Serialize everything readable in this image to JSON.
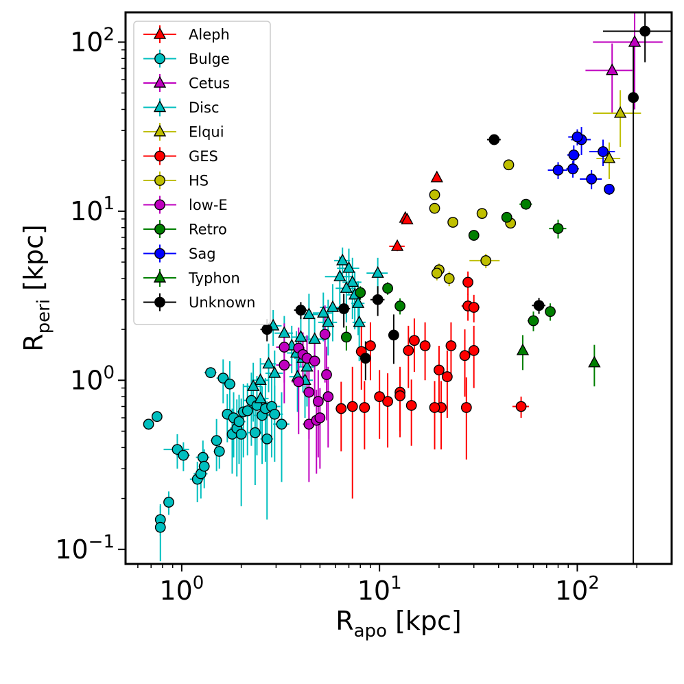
{
  "chart_data": {
    "type": "scatter",
    "title": "",
    "xlabel": "R_apo [kpc]",
    "xlabel_main": "R",
    "xlabel_sub": "apo",
    "xlabel_unit": " [kpc]",
    "ylabel": "R_peri [kpc]",
    "ylabel_main": "R",
    "ylabel_sub": "peri",
    "ylabel_unit": " [kpc]",
    "xscale": "log",
    "yscale": "log",
    "xlim": [
      0.52,
      300
    ],
    "ylim": [
      0.082,
      150
    ],
    "xticks": [
      {
        "value": 1,
        "base": "10",
        "exp": "0"
      },
      {
        "value": 10,
        "base": "10",
        "exp": "1"
      },
      {
        "value": 100,
        "base": "10",
        "exp": "2"
      }
    ],
    "yticks": [
      {
        "value": 0.1,
        "base": "10",
        "exp": "−1"
      },
      {
        "value": 1,
        "base": "10",
        "exp": "0"
      },
      {
        "value": 10,
        "base": "10",
        "exp": "1"
      },
      {
        "value": 100,
        "base": "10",
        "exp": "2"
      }
    ],
    "legend_position": "upper-left",
    "series": [
      {
        "name": "Aleph",
        "marker": "triangle",
        "color": "#ff0000",
        "points": [
          [
            19.5,
            15.8,
            0.6,
            0.8
          ],
          [
            13.5,
            9.1,
            0.5,
            0.5
          ],
          [
            13.8,
            8.9,
            0.6,
            0.5
          ],
          [
            12.3,
            6.2,
            1.1,
            0.4
          ]
        ]
      },
      {
        "name": "Bulge",
        "marker": "circle",
        "color": "#00bfbf",
        "points": [
          [
            0.68,
            0.55,
            0.04,
            0.04
          ],
          [
            0.75,
            0.61,
            0.04,
            0.04
          ],
          [
            0.78,
            0.15,
            0.04,
            0.03
          ],
          [
            0.78,
            0.135,
            0.04,
            0.05
          ],
          [
            0.86,
            0.19,
            0.04,
            0.03
          ],
          [
            0.95,
            0.39,
            0.14,
            0.09
          ],
          [
            1.02,
            0.36,
            0.08,
            0.07
          ],
          [
            1.2,
            0.26,
            0.1,
            0.07
          ],
          [
            1.25,
            0.28,
            0.1,
            0.08
          ],
          [
            1.28,
            0.35,
            0.1,
            0.09
          ],
          [
            1.3,
            0.31,
            0.08,
            0.08
          ],
          [
            1.4,
            1.11,
            0.1,
            0.08
          ],
          [
            1.5,
            0.44,
            0.1,
            0.15
          ],
          [
            1.55,
            0.38,
            0.1,
            0.08
          ],
          [
            1.62,
            1.03,
            0.12,
            0.3
          ],
          [
            1.7,
            0.63,
            0.1,
            0.2
          ],
          [
            1.75,
            0.95,
            0.12,
            0.35
          ],
          [
            1.8,
            0.48,
            0.1,
            0.2
          ],
          [
            1.83,
            0.6,
            0.12,
            0.25
          ],
          [
            1.9,
            0.52,
            0.15,
            0.25
          ],
          [
            1.95,
            0.57,
            0.15,
            0.25
          ],
          [
            2.0,
            0.48,
            0.15,
            0.3
          ],
          [
            2.05,
            0.65,
            0.15,
            0.3
          ],
          [
            2.15,
            0.66,
            0.15,
            0.3
          ],
          [
            2.25,
            0.76,
            0.2,
            0.35
          ],
          [
            2.35,
            0.49,
            0.2,
            0.25
          ],
          [
            2.4,
            0.71,
            0.2,
            0.35
          ],
          [
            2.55,
            0.62,
            0.25,
            0.3
          ],
          [
            2.65,
            0.68,
            0.25,
            0.35
          ],
          [
            2.7,
            0.45,
            0.2,
            0.3
          ],
          [
            2.85,
            0.7,
            0.3,
            0.35
          ],
          [
            2.95,
            0.63,
            0.3,
            0.3
          ],
          [
            3.2,
            0.55,
            0.3,
            0.3
          ]
        ]
      },
      {
        "name": "Cetus",
        "marker": "triangle",
        "color": "#bf00bf",
        "points": [
          [
            195,
            100,
            75,
            60
          ],
          [
            150,
            68,
            40,
            30
          ]
        ]
      },
      {
        "name": "Disc",
        "marker": "triangle",
        "color": "#00bfbf",
        "points": [
          [
            6.5,
            5.1,
            0.6,
            1.0
          ],
          [
            7.0,
            4.6,
            0.9,
            1.4
          ],
          [
            6.3,
            4.1,
            1.0,
            1.3
          ],
          [
            7.3,
            3.8,
            0.8,
            1.5
          ],
          [
            9.8,
            4.3,
            1.2,
            1.0
          ],
          [
            6.8,
            3.5,
            0.8,
            1.3
          ],
          [
            7.5,
            3.2,
            0.7,
            1.2
          ],
          [
            7.8,
            2.85,
            0.6,
            1.0
          ],
          [
            5.8,
            2.7,
            0.8,
            1.0
          ],
          [
            5.2,
            2.5,
            0.6,
            0.8
          ],
          [
            4.4,
            2.45,
            0.5,
            0.8
          ],
          [
            5.5,
            2.2,
            0.6,
            0.8
          ],
          [
            7.9,
            2.2,
            0.6,
            0.9
          ],
          [
            2.9,
            2.1,
            0.3,
            0.5
          ],
          [
            3.3,
            1.9,
            0.35,
            0.5
          ],
          [
            4.0,
            1.8,
            0.4,
            0.6
          ],
          [
            3.6,
            1.6,
            0.35,
            0.5
          ],
          [
            4.7,
            1.75,
            0.5,
            0.6
          ],
          [
            3.8,
            1.45,
            0.4,
            0.5
          ],
          [
            4.1,
            1.35,
            0.4,
            0.5
          ],
          [
            4.3,
            1.2,
            0.4,
            0.5
          ],
          [
            2.75,
            1.25,
            0.25,
            0.4
          ],
          [
            2.95,
            1.1,
            0.3,
            0.4
          ],
          [
            3.85,
            1.05,
            0.35,
            0.4
          ],
          [
            4.2,
            1.0,
            0.4,
            0.4
          ],
          [
            2.5,
            1.0,
            0.25,
            0.35
          ],
          [
            2.3,
            0.92,
            0.25,
            0.35
          ],
          [
            2.5,
            0.78,
            0.25,
            0.3
          ]
        ]
      },
      {
        "name": "Elqui",
        "marker": "triangle",
        "color": "#bfbf00",
        "points": [
          [
            165,
            38,
            45,
            14
          ],
          [
            145,
            20.5,
            20,
            5
          ]
        ]
      },
      {
        "name": "GES",
        "marker": "circle",
        "color": "#ff0000",
        "points": [
          [
            52,
            0.7,
            5,
            0.1
          ],
          [
            28,
            3.8,
            1.5,
            0.6
          ],
          [
            28,
            2.75,
            2.0,
            0.5
          ],
          [
            30,
            2.7,
            2.0,
            0.5
          ],
          [
            30,
            1.5,
            1.5,
            0.6
          ],
          [
            27,
            1.4,
            1.3,
            0.6
          ],
          [
            27.5,
            0.69,
            1.5,
            0.35
          ],
          [
            23,
            1.6,
            1.0,
            0.6
          ],
          [
            22,
            1.05,
            1.0,
            0.45
          ],
          [
            20,
            1.15,
            1.0,
            0.45
          ],
          [
            20.5,
            0.69,
            1.0,
            0.3
          ],
          [
            19,
            0.69,
            1.0,
            0.3
          ],
          [
            17,
            1.6,
            0.8,
            0.6
          ],
          [
            15,
            1.72,
            0.8,
            0.6
          ],
          [
            14,
            1.5,
            0.8,
            0.6
          ],
          [
            14.5,
            0.71,
            0.7,
            0.3
          ],
          [
            12.7,
            0.85,
            0.7,
            0.35
          ],
          [
            12.7,
            0.81,
            0.7,
            0.35
          ],
          [
            11,
            0.75,
            0.6,
            0.35
          ],
          [
            10,
            0.8,
            0.6,
            0.35
          ],
          [
            9,
            1.6,
            0.5,
            0.6
          ],
          [
            8.1,
            1.48,
            0.5,
            0.6
          ],
          [
            8.4,
            0.69,
            0.5,
            0.3
          ],
          [
            7.3,
            0.7,
            0.4,
            0.5
          ],
          [
            6.4,
            0.68,
            0.4,
            0.3
          ]
        ]
      },
      {
        "name": "HS",
        "marker": "circle",
        "color": "#bfbf00",
        "points": [
          [
            45,
            18.8,
            1.5,
            1.2
          ],
          [
            19,
            12.5,
            0.6,
            0.7
          ],
          [
            19,
            10.4,
            0.6,
            0.6
          ],
          [
            33,
            9.7,
            1.2,
            0.7
          ],
          [
            23.5,
            8.6,
            0.8,
            0.6
          ],
          [
            46,
            8.5,
            1.5,
            0.6
          ],
          [
            20,
            4.5,
            0.6,
            0.4
          ],
          [
            19.5,
            4.3,
            0.6,
            0.4
          ],
          [
            22.5,
            4.0,
            0.8,
            0.4
          ],
          [
            34.5,
            5.1,
            6.0,
            0.5
          ]
        ]
      },
      {
        "name": "low-E",
        "marker": "circle",
        "color": "#bf00bf",
        "points": [
          [
            5.3,
            1.87,
            0.3,
            0.9
          ],
          [
            3.3,
            1.57,
            0.3,
            0.6
          ],
          [
            3.9,
            1.55,
            0.3,
            0.5
          ],
          [
            4.1,
            1.42,
            0.3,
            0.5
          ],
          [
            4.3,
            1.35,
            0.3,
            0.5
          ],
          [
            4.7,
            1.3,
            0.3,
            0.6
          ],
          [
            3.3,
            1.23,
            0.3,
            0.5
          ],
          [
            5.4,
            1.08,
            0.3,
            0.5
          ],
          [
            3.9,
            0.98,
            0.3,
            0.5
          ],
          [
            4.4,
            0.85,
            0.3,
            0.4
          ],
          [
            5.5,
            0.8,
            0.3,
            0.4
          ],
          [
            4.9,
            0.75,
            0.3,
            0.4
          ],
          [
            4.4,
            0.55,
            0.3,
            0.3
          ],
          [
            4.8,
            0.58,
            0.3,
            0.3
          ],
          [
            5.0,
            0.6,
            0.3,
            0.3
          ]
        ]
      },
      {
        "name": "Retro",
        "marker": "circle",
        "color": "#007f00",
        "points": [
          [
            55,
            11,
            4,
            0.8
          ],
          [
            44,
            9.2,
            2,
            0.7
          ],
          [
            30,
            7.2,
            1.5,
            0.5
          ],
          [
            80,
            7.9,
            8,
            1.0
          ],
          [
            11,
            3.5,
            0.5,
            0.3
          ],
          [
            8,
            3.3,
            0.5,
            0.3
          ],
          [
            12.7,
            2.75,
            0.5,
            0.3
          ],
          [
            6.8,
            1.8,
            0.4,
            0.3
          ],
          [
            60,
            2.25,
            4,
            0.3
          ],
          [
            73,
            2.55,
            3,
            0.3
          ]
        ]
      },
      {
        "name": "Sag",
        "marker": "circle",
        "color": "#0000ff",
        "points": [
          [
            105,
            26.5,
            12,
            5
          ],
          [
            100,
            27.5,
            10,
            3
          ],
          [
            135,
            22.5,
            20,
            4
          ],
          [
            96,
            21.5,
            7,
            3
          ],
          [
            80,
            17.5,
            9,
            2
          ],
          [
            95,
            17.8,
            7,
            2
          ],
          [
            118,
            15.5,
            15,
            2
          ],
          [
            145,
            13.5,
            8,
            1
          ]
        ]
      },
      {
        "name": "Typhon",
        "marker": "triangle",
        "color": "#007f00",
        "points": [
          [
            53,
            1.5,
            1.5,
            0.35
          ],
          [
            122,
            1.27,
            4,
            0.35
          ]
        ]
      },
      {
        "name": "Unknown",
        "marker": "circle",
        "color": "#000000",
        "points": [
          [
            220,
            116,
            85,
            40
          ],
          [
            192,
            47,
            10,
            50
          ],
          [
            38,
            26.5,
            3,
            1.5
          ],
          [
            64,
            2.77,
            5,
            0.3
          ],
          [
            9.8,
            3.0,
            0.8,
            0.6
          ],
          [
            6.6,
            2.65,
            0.5,
            0.6
          ],
          [
            4.0,
            2.6,
            0.3,
            0.3
          ],
          [
            2.7,
            2.0,
            0.2,
            0.3
          ],
          [
            11.8,
            1.85,
            0.6,
            0.6
          ],
          [
            8.5,
            1.35,
            0.4,
            0.35
          ]
        ]
      }
    ]
  }
}
